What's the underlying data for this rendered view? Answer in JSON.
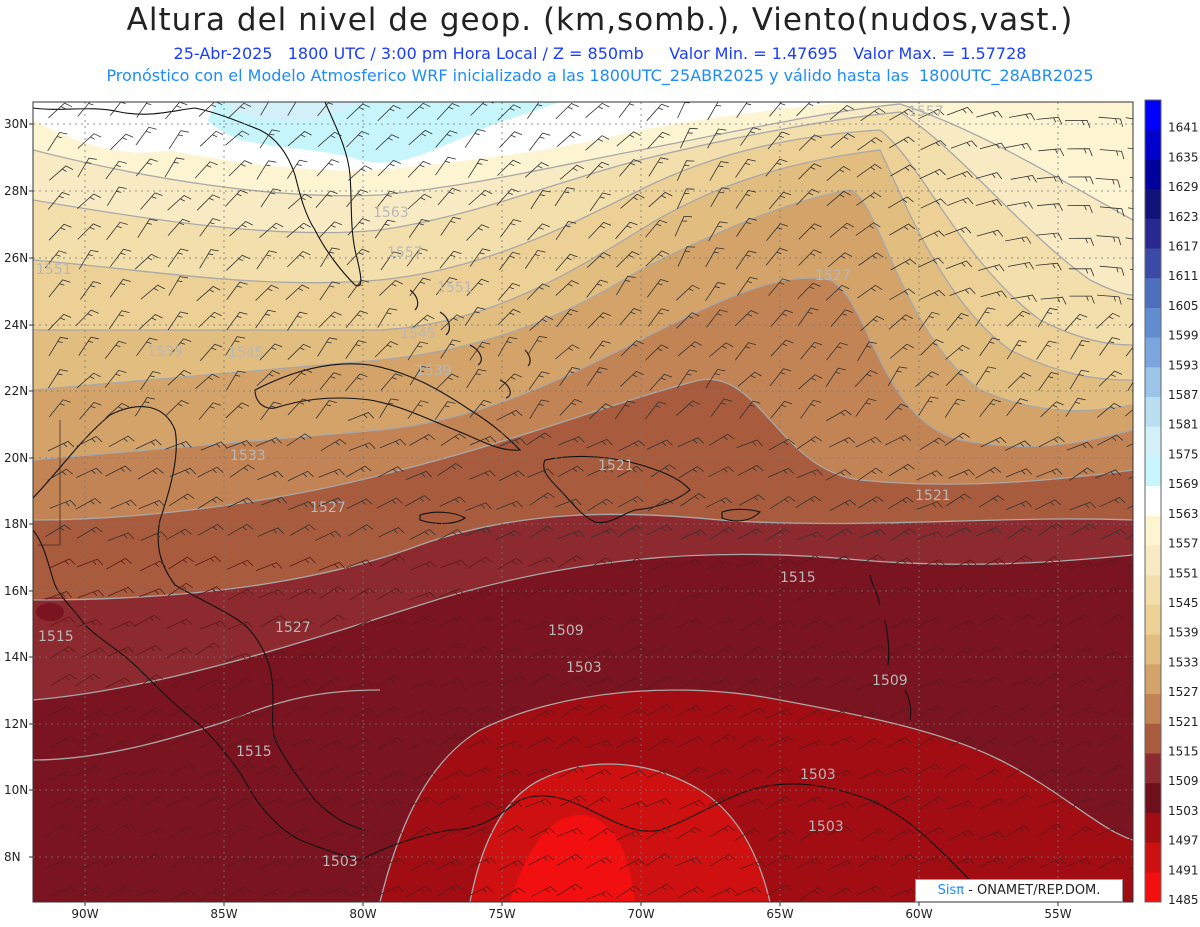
{
  "header": {
    "title": "Altura del nivel de geop. (km,somb.), Viento(nudos,vast.)",
    "subtitle1": "25-Abr-2025   1800 UTC / 3:00 pm Hora Local / Z = 850mb     Valor Min. = 1.47695   Valor Max. = 1.57728",
    "subtitle2": "Pronóstico con el Modelo Atmosferico WRF inicializado a las 1800UTC_25ABR2025 y válido hasta las  1800UTC_28ABR2025"
  },
  "axes": {
    "lat_labels": [
      "30N",
      "28N",
      "26N",
      "24N",
      "22N",
      "20N",
      "18N",
      "16N",
      "14N",
      "12N",
      "10N",
      "8N"
    ],
    "lon_labels": [
      "90W",
      "85W",
      "80W",
      "75W",
      "70W",
      "65W",
      "60W",
      "55W"
    ]
  },
  "colorbar": {
    "levels": [
      "1641",
      "1635",
      "1629",
      "1623",
      "1617",
      "1611",
      "1605",
      "1599",
      "1593",
      "1587",
      "1581",
      "1575",
      "1569",
      "1563",
      "1557",
      "1551",
      "1545",
      "1539",
      "1533",
      "1527",
      "1521",
      "1515",
      "1509",
      "1503",
      "1497",
      "1491",
      "1485"
    ],
    "colors": [
      "#0000ff",
      "#0000cc",
      "#00009c",
      "#12127a",
      "#29288f",
      "#3b4aa6",
      "#4d6fbd",
      "#5f8dd0",
      "#7aa6dd",
      "#9cc4e8",
      "#b9dff0",
      "#d3f0f8",
      "#c6f5fb",
      "#ffffff",
      "#fdf4d2",
      "#f8ebc4",
      "#f3dfac",
      "#ecd096",
      "#e2bd80",
      "#d3a369",
      "#c28355",
      "#a85c3d",
      "#8c2a2f",
      "#6e0f1b",
      "#a10d12",
      "#cf1010",
      "#f20f0f"
    ]
  },
  "contour_labels": [
    "1557",
    "1563",
    "1557",
    "1551",
    "1551",
    "1545",
    "1539",
    "1545",
    "1539",
    "1527",
    "1533",
    "1527",
    "1521",
    "1527",
    "1521",
    "1515",
    "1515",
    "1509",
    "1503",
    "1509",
    "1515",
    "1503",
    "1503",
    "1503"
  ],
  "credit": {
    "brand": "Sisπ",
    "text": " - ONAMET/REP.DOM."
  }
}
